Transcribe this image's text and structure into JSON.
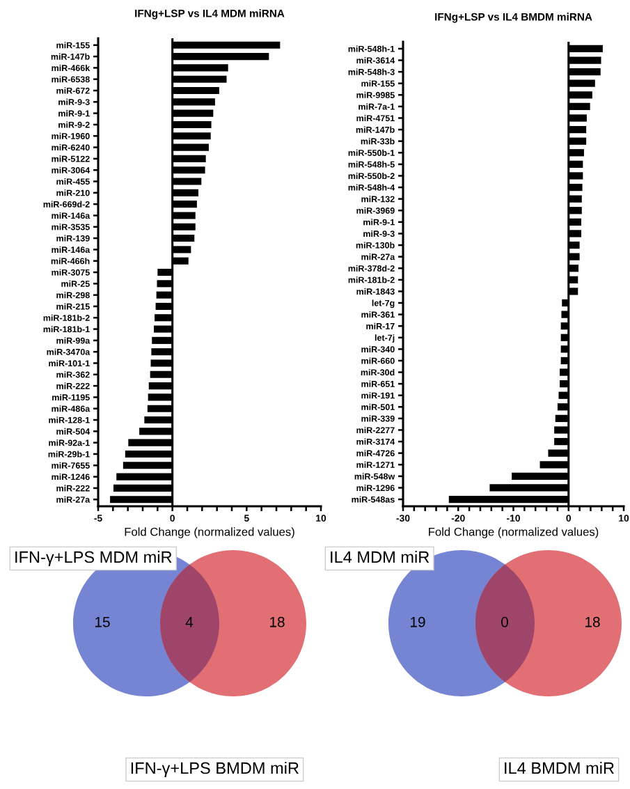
{
  "chart_data": [
    {
      "type": "bar",
      "orientation": "horizontal",
      "title": "IFNg+LSP vs IL4 MDM miRNA",
      "xlabel": "Fold Change (normalized values)",
      "categories": [
        "miR-155",
        "miR-147b",
        "miR-466k",
        "miR-6538",
        "miR-672",
        "miR-9-3",
        "miR-9-1",
        "miR-9-2",
        "miR-1960",
        "miR-6240",
        "miR-5122",
        "miR-3064",
        "miR-455",
        "miR-210",
        "miR-669d-2",
        "miR-146a",
        "miR-3535",
        "miR-139",
        "miR-146a",
        "miR-466h",
        "miR-3075",
        "miR-25",
        "miR-298",
        "miR-215",
        "miR-181b-2",
        "miR-181b-1",
        "miR-99a",
        "miR-3470a",
        "miR-101-1",
        "miR-362",
        "miR-222",
        "miR-1195",
        "miR-486a",
        "miR-128-1",
        "miR-504",
        "miR-92a-1",
        "miR-29b-1",
        "miR-7655",
        "miR-1246",
        "miR-222",
        "miR-27a"
      ],
      "values": [
        7.25,
        6.5,
        3.75,
        3.65,
        3.15,
        2.87,
        2.75,
        2.62,
        2.58,
        2.45,
        2.25,
        2.2,
        1.95,
        1.75,
        1.65,
        1.55,
        1.55,
        1.48,
        1.25,
        1.08,
        -1.0,
        -1.04,
        -1.08,
        -1.13,
        -1.2,
        -1.25,
        -1.38,
        -1.42,
        -1.46,
        -1.5,
        -1.59,
        -1.64,
        -1.68,
        -1.89,
        -2.23,
        -2.97,
        -3.18,
        -3.32,
        -3.77,
        -3.97,
        -4.2
      ],
      "color": "#000000",
      "xlim": [
        -5,
        10
      ],
      "xticks": [
        -5,
        {
          "value": -4,
          "label": null
        },
        {
          "value": -3,
          "label": null
        },
        {
          "value": -2,
          "label": null
        },
        {
          "value": -1,
          "label": null
        },
        0,
        {
          "value": 1,
          "label": null
        },
        {
          "value": 2,
          "label": null
        },
        {
          "value": 3,
          "label": null
        },
        {
          "value": 4,
          "label": null
        },
        5,
        {
          "value": 6,
          "label": null
        },
        {
          "value": 7,
          "label": null
        },
        {
          "value": 8,
          "label": null
        },
        {
          "value": 9,
          "label": null
        },
        10
      ],
      "ref_lines": [
        {
          "axis": "x",
          "value": 0,
          "color": "#000000"
        }
      ],
      "grid": false,
      "legend": false
    },
    {
      "type": "bar",
      "orientation": "horizontal",
      "title": "IFNg+LSP vs IL4 BMDM miRNA",
      "xlabel": "Fold Change (normalized values)",
      "categories": [
        "miR-548h-1",
        "miR-3614",
        "miR-548h-3",
        "miR-155",
        "miR-9985",
        "miR-7a-1",
        "miR-4751",
        "miR-147b",
        "miR-33b",
        "miR-550b-1",
        "miR-548h-5",
        "miR-550b-2",
        "miR-548h-4",
        "miR-132",
        "miR-3969",
        "miR-9-1",
        "miR-9-3",
        "miR-130b",
        "miR-27a",
        "miR-378d-2",
        "miR-181b-2",
        "miR-1843",
        "let-7g",
        "miR-361",
        "miR-17",
        "let-7j",
        "miR-340",
        "miR-660",
        "miR-30d",
        "miR-651",
        "miR-191",
        "miR-501",
        "miR-339",
        "miR-2277",
        "miR-3174",
        "miR-4726",
        "miR-1271",
        "miR-548w",
        "miR-1296",
        "miR-548as"
      ],
      "values": [
        6.2,
        5.9,
        5.8,
        4.8,
        4.3,
        3.9,
        3.3,
        3.2,
        3.2,
        2.8,
        2.6,
        2.6,
        2.5,
        2.4,
        2.4,
        2.3,
        2.3,
        2.0,
        2.0,
        1.8,
        1.7,
        1.7,
        -1.2,
        -1.3,
        -1.4,
        -1.4,
        -1.4,
        -1.4,
        -1.6,
        -1.6,
        -1.8,
        -2.0,
        -2.4,
        -2.6,
        -2.6,
        -3.7,
        -5.2,
        -10.3,
        -14.3,
        -21.7
      ],
      "color": "#000000",
      "xlim": [
        -30,
        10
      ],
      "xticks": [
        -30,
        {
          "value": -28,
          "label": null
        },
        {
          "value": -26,
          "label": null
        },
        {
          "value": -24,
          "label": null
        },
        {
          "value": -22,
          "label": null
        },
        -20,
        {
          "value": -18,
          "label": null
        },
        {
          "value": -16,
          "label": null
        },
        {
          "value": -14,
          "label": null
        },
        {
          "value": -12,
          "label": null
        },
        -10,
        {
          "value": -8,
          "label": null
        },
        {
          "value": -6,
          "label": null
        },
        {
          "value": -4,
          "label": null
        },
        {
          "value": -2,
          "label": null
        },
        0,
        {
          "value": 2,
          "label": null
        },
        {
          "value": 4,
          "label": null
        },
        {
          "value": 6,
          "label": null
        },
        {
          "value": 8,
          "label": null
        },
        10
      ],
      "ref_lines": [
        {
          "axis": "x",
          "value": 0,
          "color": "#000000"
        }
      ],
      "grid": false,
      "legend": false
    },
    {
      "type": "other",
      "annotations": [
        "IFN-γ+LPS MDM miR",
        "IFN-γ+LPS BMDM miR"
      ],
      "values": [
        15,
        4,
        18
      ],
      "colors": [
        "#7585d3",
        "#a0456a",
        "#e16f73"
      ],
      "data_labels": true
    },
    {
      "type": "other",
      "annotations": [
        "IL4 MDM miR",
        "IL4 BMDM miR"
      ],
      "values": [
        19,
        0,
        18
      ],
      "colors": [
        "#7585d3",
        "#a0456a",
        "#e16f73"
      ],
      "data_labels": true
    }
  ]
}
